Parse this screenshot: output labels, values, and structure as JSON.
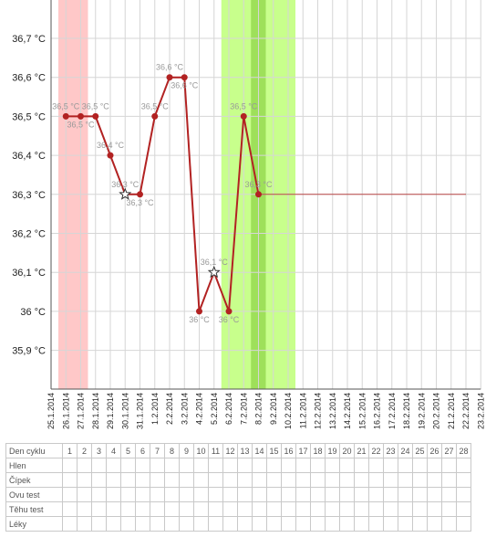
{
  "chart_data": {
    "type": "line",
    "title": "",
    "xlabel": "",
    "ylabel": "",
    "y_unit": "°C",
    "ylim": [
      35.8,
      36.8
    ],
    "y_ticks": [
      35.9,
      36.0,
      36.1,
      36.2,
      36.3,
      36.4,
      36.5,
      36.6,
      36.7
    ],
    "y_tick_labels": [
      "35,9 °C",
      "36 °C",
      "36,1 °C",
      "36,2 °C",
      "36,3 °C",
      "36,4 °C",
      "36,5 °C",
      "36,6 °C",
      "36,7 °C"
    ],
    "grid": true,
    "x_labels": [
      "25.1.2014",
      "26.1.2014",
      "27.1.2014",
      "28.1.2014",
      "29.1.2014",
      "30.1.2014",
      "31.1.2014",
      "1.2.2014",
      "2.2.2014",
      "3.2.2014",
      "4.2.2014",
      "5.2.2014",
      "6.2.2014",
      "7.2.2014",
      "8.2.2014",
      "9.2.2014",
      "10.2.2014",
      "11.2.2014",
      "12.2.2014",
      "13.2.2014",
      "14.2.2014",
      "15.2.2014",
      "16.2.2014",
      "17.2.2014",
      "18.2.2014",
      "19.2.2014",
      "20.2.2014",
      "21.2.2014",
      "22.2.2014",
      "23.2.2014"
    ],
    "series": [
      {
        "color": "#b22222",
        "points": [
          {
            "x": "26.1.2014",
            "y": 36.5,
            "label": "36,5 °C",
            "marker": "dot"
          },
          {
            "x": "27.1.2014",
            "y": 36.5,
            "label": "36,5 °C",
            "marker": "dot"
          },
          {
            "x": "28.1.2014",
            "y": 36.5,
            "label": "36,5 °C",
            "marker": "dot"
          },
          {
            "x": "29.1.2014",
            "y": 36.4,
            "label": "36,4 °C",
            "marker": "dot"
          },
          {
            "x": "30.1.2014",
            "y": 36.3,
            "label": "36,3 °C",
            "marker": "star"
          },
          {
            "x": "31.1.2014",
            "y": 36.3,
            "label": "36,3 °C",
            "marker": "dot"
          },
          {
            "x": "1.2.2014",
            "y": 36.5,
            "label": "36,5 °C",
            "marker": "dot"
          },
          {
            "x": "2.2.2014",
            "y": 36.6,
            "label": "36,6 °C",
            "marker": "dot"
          },
          {
            "x": "3.2.2014",
            "y": 36.6,
            "label": "36,6 °C",
            "marker": "dot"
          },
          {
            "x": "4.2.2014",
            "y": 36.0,
            "label": "36 °C",
            "marker": "dot"
          },
          {
            "x": "5.2.2014",
            "y": 36.1,
            "label": "36,1 °C",
            "marker": "star"
          },
          {
            "x": "6.2.2014",
            "y": 36.0,
            "label": "36 °C",
            "marker": "dot"
          },
          {
            "x": "7.2.2014",
            "y": 36.5,
            "label": "36,5 °C",
            "marker": "dot"
          },
          {
            "x": "8.2.2014",
            "y": 36.3,
            "label": "36,3 °C",
            "marker": "dot"
          }
        ]
      }
    ],
    "reference_line": {
      "y": 36.3,
      "from": "8.2.2014",
      "to": "22.2.2014",
      "color": "#b22222"
    },
    "bands": [
      {
        "name": "menstruation",
        "from": "25.1.2014",
        "to": "27.1.2014",
        "color": "#ffc8c8"
      },
      {
        "name": "fertile",
        "from": "5.2.2014",
        "to": "10.2.2014",
        "color": "#c8ff8c"
      },
      {
        "name": "ovulation",
        "from": "7.2.2014",
        "to": "8.2.2014",
        "color": "#9ee05a"
      }
    ]
  },
  "table": {
    "header": "Den cyklu",
    "days": [
      "1",
      "2",
      "3",
      "4",
      "5",
      "6",
      "7",
      "8",
      "9",
      "10",
      "11",
      "12",
      "13",
      "14",
      "15",
      "16",
      "17",
      "18",
      "19",
      "20",
      "21",
      "22",
      "23",
      "24",
      "25",
      "26",
      "27",
      "28"
    ],
    "rows": [
      "Hlen",
      "Čípek",
      "Ovu test",
      "Těhu test",
      "Léky"
    ]
  }
}
